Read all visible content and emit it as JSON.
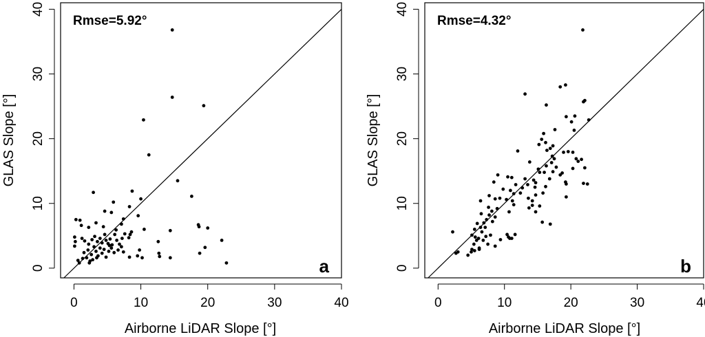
{
  "chart_data": [
    {
      "type": "scatter",
      "xlabel": "Airborne LiDAR Slope [°]",
      "ylabel": "GLAS Slope [°]",
      "xlim": [
        -2,
        40
      ],
      "ylim": [
        -1.5,
        41
      ],
      "xticks": [
        "0",
        "10",
        "20",
        "30",
        "40"
      ],
      "yticks": [
        "0",
        "10",
        "20",
        "30",
        "40"
      ],
      "annotation": "Rmse=5.92°",
      "panel_label": "a",
      "reference_line": "1:1",
      "points": [
        [
          14.7,
          36.8
        ],
        [
          14.7,
          26.4
        ],
        [
          19.4,
          25.1
        ],
        [
          10.4,
          22.9
        ],
        [
          11.2,
          17.5
        ],
        [
          15.5,
          13.5
        ],
        [
          17.6,
          11.1
        ],
        [
          2.9,
          11.7
        ],
        [
          8.7,
          11.9
        ],
        [
          10,
          10.7
        ],
        [
          5.9,
          10.2
        ],
        [
          8.3,
          9.5
        ],
        [
          0.3,
          7.5
        ],
        [
          0.9,
          7.4
        ],
        [
          4.6,
          8.8
        ],
        [
          5.6,
          8.6
        ],
        [
          9.6,
          8.1
        ],
        [
          7.4,
          7.6
        ],
        [
          1.1,
          6.6
        ],
        [
          2.2,
          6.3
        ],
        [
          4.4,
          6.4
        ],
        [
          7.1,
          6.8
        ],
        [
          3.3,
          7
        ],
        [
          6.3,
          5.9
        ],
        [
          8.4,
          5.2
        ],
        [
          10.5,
          6
        ],
        [
          14.4,
          5.8
        ],
        [
          18.6,
          6.7
        ],
        [
          18.7,
          6.4
        ],
        [
          20,
          6.2
        ],
        [
          0.1,
          4.8
        ],
        [
          0.2,
          4.1
        ],
        [
          0.1,
          3.4
        ],
        [
          1.2,
          4.6
        ],
        [
          1.6,
          4.2
        ],
        [
          2.2,
          3.7
        ],
        [
          2.7,
          4.4
        ],
        [
          3.1,
          4.9
        ],
        [
          3.5,
          4.1
        ],
        [
          3.9,
          4.6
        ],
        [
          4.2,
          3.9
        ],
        [
          4.6,
          5.2
        ],
        [
          4.8,
          4.3
        ],
        [
          5.1,
          3.8
        ],
        [
          5.4,
          4.5
        ],
        [
          5.7,
          3.6
        ],
        [
          6.1,
          5.2
        ],
        [
          6.4,
          4.3
        ],
        [
          6.8,
          3.7
        ],
        [
          7.2,
          4.6
        ],
        [
          7.6,
          5.3
        ],
        [
          8.2,
          4.7
        ],
        [
          8.6,
          5.6
        ],
        [
          12.6,
          4.1
        ],
        [
          1.5,
          2.4
        ],
        [
          1.9,
          1.6
        ],
        [
          2.1,
          2.8
        ],
        [
          2.4,
          1.1
        ],
        [
          2.6,
          2.1
        ],
        [
          3,
          3.3
        ],
        [
          3.3,
          2.6
        ],
        [
          3.6,
          1.9
        ],
        [
          3.9,
          3.1
        ],
        [
          4.2,
          2.3
        ],
        [
          4.5,
          2.9
        ],
        [
          4.8,
          1.7
        ],
        [
          5.2,
          2.6
        ],
        [
          5.6,
          3.1
        ],
        [
          6,
          2.4
        ],
        [
          6.6,
          2.8
        ],
        [
          7.4,
          2.5
        ],
        [
          8.3,
          1.7
        ],
        [
          9.5,
          1.9
        ],
        [
          10.2,
          1.6
        ],
        [
          12.7,
          2.3
        ],
        [
          12.8,
          1.8
        ],
        [
          14.4,
          1.6
        ],
        [
          18.8,
          2.3
        ],
        [
          19.6,
          3.2
        ],
        [
          22.1,
          4.3
        ],
        [
          22.8,
          0.8
        ],
        [
          0.6,
          1.2
        ],
        [
          0.8,
          0.8
        ],
        [
          1.3,
          1.5
        ],
        [
          2.3,
          0.8
        ],
        [
          2.8,
          1.3
        ],
        [
          3.4,
          1.6
        ],
        [
          9.8,
          2.8
        ],
        [
          7.1,
          3.3
        ],
        [
          5.3,
          3.5
        ]
      ]
    },
    {
      "type": "scatter",
      "xlabel": "Airborne LiDAR Slope [°]",
      "ylabel": "GLAS Slope [°]",
      "xlim": [
        -2,
        40
      ],
      "ylim": [
        -1.5,
        41
      ],
      "xticks": [
        "0",
        "10",
        "20",
        "30",
        "40"
      ],
      "yticks": [
        "0",
        "10",
        "20",
        "30",
        "40"
      ],
      "annotation": "Rmse=4.32°",
      "panel_label": "b",
      "reference_line": "1:1",
      "points": [
        [
          21.8,
          36.8
        ],
        [
          13.1,
          26.9
        ],
        [
          18.4,
          28
        ],
        [
          19.2,
          28.3
        ],
        [
          16.3,
          25.2
        ],
        [
          22.1,
          25.9
        ],
        [
          21.9,
          25.7
        ],
        [
          20.6,
          23.5
        ],
        [
          22.7,
          22.9
        ],
        [
          19.3,
          23.4
        ],
        [
          20.1,
          22.6
        ],
        [
          17.6,
          21.4
        ],
        [
          20.5,
          21.3
        ],
        [
          15.9,
          20.8
        ],
        [
          15.6,
          19.9
        ],
        [
          16.2,
          19.4
        ],
        [
          15.2,
          19.1
        ],
        [
          17.3,
          18.9
        ],
        [
          16.9,
          18.5
        ],
        [
          18.9,
          17.9
        ],
        [
          19.6,
          18
        ],
        [
          20.3,
          17.9
        ],
        [
          12,
          18.1
        ],
        [
          16.4,
          18.2
        ],
        [
          17.2,
          17.3
        ],
        [
          17.5,
          16.9
        ],
        [
          20.8,
          16.9
        ],
        [
          21.6,
          16.8
        ],
        [
          21.1,
          16.5
        ],
        [
          13.8,
          16.4
        ],
        [
          17.1,
          16.3
        ],
        [
          16.3,
          15.8
        ],
        [
          17.8,
          15.6
        ],
        [
          20.3,
          15.4
        ],
        [
          22.1,
          15.5
        ],
        [
          15.1,
          15.3
        ],
        [
          15.3,
          14.8
        ],
        [
          16,
          14.8
        ],
        [
          18.7,
          14.7
        ],
        [
          17.3,
          14.9
        ],
        [
          18.4,
          14.4
        ],
        [
          9,
          14.4
        ],
        [
          10.5,
          14.1
        ],
        [
          11.1,
          14
        ],
        [
          13.1,
          13.8
        ],
        [
          14.4,
          13.6
        ],
        [
          16.8,
          13.8
        ],
        [
          14.7,
          13.2
        ],
        [
          19.2,
          13.3
        ],
        [
          21.9,
          13.1
        ],
        [
          22.5,
          13
        ],
        [
          8.4,
          13.3
        ],
        [
          11.7,
          12.9
        ],
        [
          12.7,
          12.4
        ],
        [
          13.5,
          12.9
        ],
        [
          14.6,
          12.5
        ],
        [
          16.2,
          12.6
        ],
        [
          19.3,
          13
        ],
        [
          9.8,
          12.2
        ],
        [
          10.9,
          12
        ],
        [
          11.4,
          11.5
        ],
        [
          12.4,
          11.6
        ],
        [
          14.7,
          11.3
        ],
        [
          15.8,
          11.6
        ],
        [
          7.7,
          11.2
        ],
        [
          8.6,
          10.7
        ],
        [
          9.3,
          10.8
        ],
        [
          10.3,
          10.6
        ],
        [
          11.2,
          10.4
        ],
        [
          13.6,
          10.8
        ],
        [
          14.2,
          10.4
        ],
        [
          19.3,
          11
        ],
        [
          6.4,
          10.4
        ],
        [
          7.6,
          9.4
        ],
        [
          8.9,
          9.2
        ],
        [
          11.4,
          9.8
        ],
        [
          14.2,
          9.7
        ],
        [
          15.3,
          9.6
        ],
        [
          8.1,
          8.8
        ],
        [
          10.7,
          8.7
        ],
        [
          14.7,
          8.7
        ],
        [
          13.7,
          9.3
        ],
        [
          6.5,
          8.4
        ],
        [
          7.7,
          8.2
        ],
        [
          8.6,
          7.9
        ],
        [
          16.9,
          6.8
        ],
        [
          15.7,
          7.1
        ],
        [
          5.9,
          6.9
        ],
        [
          6.9,
          7
        ],
        [
          7.3,
          7.5
        ],
        [
          8.2,
          7.2
        ],
        [
          5.5,
          6
        ],
        [
          6.4,
          6.3
        ],
        [
          7.1,
          6.3
        ],
        [
          6.6,
          5.6
        ],
        [
          2.2,
          5.6
        ],
        [
          5.1,
          5.1
        ],
        [
          5.6,
          4.8
        ],
        [
          6.1,
          4.6
        ],
        [
          7.2,
          4.9
        ],
        [
          7.9,
          5.1
        ],
        [
          10.6,
          4.8
        ],
        [
          10.8,
          4.6
        ],
        [
          11.1,
          4.6
        ],
        [
          5.8,
          4.3
        ],
        [
          6.8,
          4.3
        ],
        [
          7.5,
          3.7
        ],
        [
          8.6,
          3.4
        ],
        [
          5.4,
          3.7
        ],
        [
          5.1,
          2.9
        ],
        [
          5.5,
          2.7
        ],
        [
          6.2,
          2.9
        ],
        [
          3,
          2.5
        ],
        [
          2.7,
          2.3
        ],
        [
          4.5,
          2
        ],
        [
          5,
          2.5
        ],
        [
          6.2,
          3.1
        ],
        [
          9.4,
          4.4
        ],
        [
          11.6,
          5.2
        ],
        [
          10.4,
          5.2
        ]
      ]
    }
  ]
}
